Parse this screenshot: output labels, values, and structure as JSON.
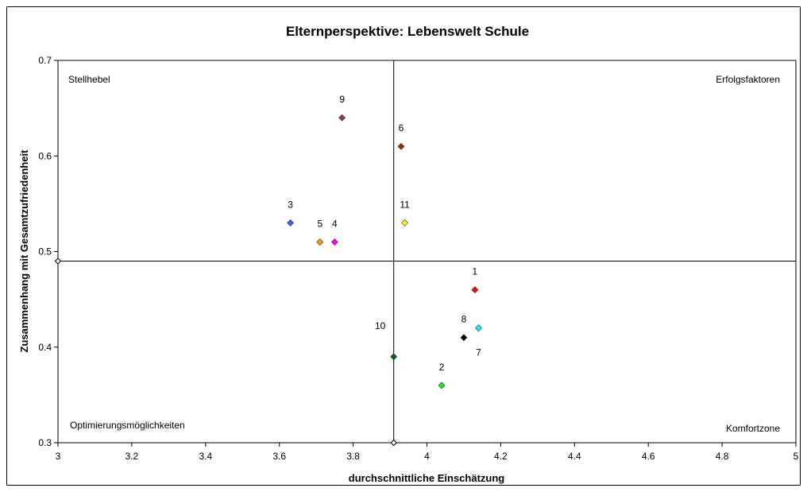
{
  "chart_data": {
    "type": "scatter",
    "title": "Elternperspektive: Lebenswelt Schule",
    "xlabel": "durchschnittliche Einschätzung",
    "ylabel": "Zusammenhang mit Gesamtzufriedenheit",
    "xlim": [
      3,
      5
    ],
    "ylim": [
      0.3,
      0.7
    ],
    "x_ticks": [
      "3",
      "3.2",
      "3.4",
      "3.6",
      "3.8",
      "4",
      "4.2",
      "4.4",
      "4.6",
      "4.8",
      "5"
    ],
    "y_ticks": [
      "0.3",
      "0.4",
      "0.5",
      "0.6",
      "0.7"
    ],
    "reference_lines": {
      "x": 3.91,
      "y": 0.49
    },
    "quadrant_labels": {
      "top_left": "Stellhebel",
      "top_right": "Erfolgsfaktoren",
      "bottom_left": "Optimierungsmöglichkeiten",
      "bottom_right": "Komfortzone"
    },
    "points": [
      {
        "label": "1",
        "x": 4.13,
        "y": 0.46,
        "color": "#ff0000",
        "label_pos": "above"
      },
      {
        "label": "2",
        "x": 4.04,
        "y": 0.36,
        "color": "#00ff00",
        "label_pos": "above"
      },
      {
        "label": "3",
        "x": 3.63,
        "y": 0.53,
        "color": "#3366ff",
        "label_pos": "above"
      },
      {
        "label": "4",
        "x": 3.75,
        "y": 0.51,
        "color": "#ff00ff",
        "label_pos": "above"
      },
      {
        "label": "5",
        "x": 3.71,
        "y": 0.51,
        "color": "#ff9900",
        "label_pos": "above"
      },
      {
        "label": "6",
        "x": 3.93,
        "y": 0.61,
        "color": "#993300",
        "label_pos": "above"
      },
      {
        "label": "7",
        "x": 4.14,
        "y": 0.42,
        "color": "#00ffff",
        "label_pos": "below"
      },
      {
        "label": "8",
        "x": 4.1,
        "y": 0.41,
        "color": "#000000",
        "label_pos": "above"
      },
      {
        "label": "9",
        "x": 3.77,
        "y": 0.64,
        "color": "#993366",
        "label_pos": "above"
      },
      {
        "label": "10",
        "x": 3.91,
        "y": 0.39,
        "color": "#006600",
        "label_pos": "above-left"
      },
      {
        "label": "11",
        "x": 3.94,
        "y": 0.53,
        "color": "#ffff00",
        "label_pos": "above"
      }
    ]
  }
}
